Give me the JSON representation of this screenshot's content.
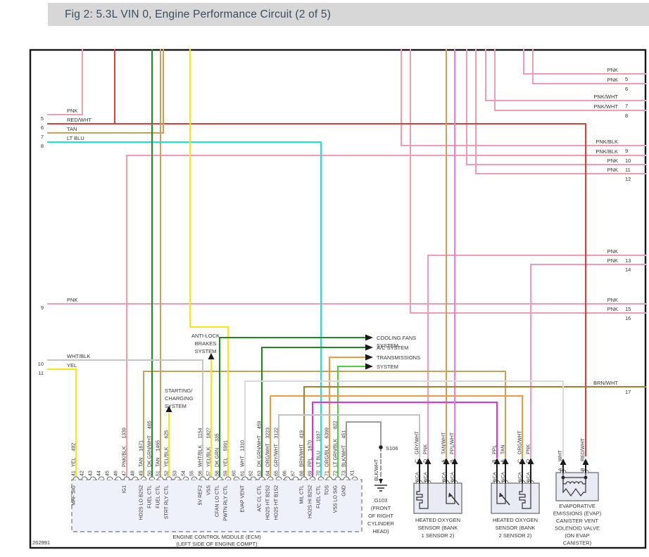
{
  "header": {
    "title": "Fig 2: 5.3L VIN 0, Engine Performance Circuit (2 of 5)"
  },
  "figure_id": "262991",
  "palette": {
    "pnk": "#f29cb4",
    "red": "#e23b3b",
    "tan": "#c9a257",
    "ltblu": "#17e2e6",
    "yel": "#f6e90c",
    "dkgrn": "#1d8a1d",
    "ltgrn": "#4ed13e",
    "org": "#f09a40",
    "brn": "#a97e2c",
    "ppl": "#e62ee6",
    "pplwht": "#ef7be0",
    "wht": "#d9d9d9",
    "whtblk": "#c6c6c6",
    "gry": "#c3c3c3",
    "blkwht": "#9b9b9b"
  },
  "left_exits": [
    {
      "num": "5",
      "label": "PNK"
    },
    {
      "num": "6",
      "label": "RED/WHT"
    },
    {
      "num": "7",
      "label": "TAN"
    },
    {
      "num": "8",
      "label": "LT BLU"
    },
    {
      "num": "9",
      "label": "PNK"
    },
    {
      "num": "10",
      "label": "WHT/BLK"
    },
    {
      "num": "11",
      "label": "YEL"
    }
  ],
  "right_exits": [
    {
      "num": "5",
      "label": "PNK"
    },
    {
      "num": "6",
      "label": "PNK"
    },
    {
      "num": "7",
      "label": "PNK/WHT"
    },
    {
      "num": "8",
      "label": "PNK/WHT"
    },
    {
      "num": "9",
      "label": "PNK/BLK"
    },
    {
      "num": "10",
      "label": "PNK/BLK"
    },
    {
      "num": "11",
      "label": "PNK"
    },
    {
      "num": "12",
      "label": "PNK"
    },
    {
      "num": "13",
      "label": "PNK"
    },
    {
      "num": "14",
      "label": "PNK"
    },
    {
      "num": "15",
      "label": "PNK"
    },
    {
      "num": "16",
      "label": "PNK"
    },
    {
      "num": "17",
      "label": "BRN/WHT"
    }
  ],
  "systems": {
    "cooling": [
      "COOLING FANS",
      "SYSTEM"
    ],
    "ac": [
      "A/C SYSTEM"
    ],
    "trans": [
      "TRANSMISSIONS",
      "SYSTEM"
    ],
    "abs": [
      "ANTI-LOCK",
      "BRAKES",
      "SYSTEM"
    ],
    "start_chg": [
      "STARTING/",
      "CHARGING",
      "SYSTEM"
    ]
  },
  "ecm": {
    "label": [
      "ENGINE CONTROL MODULE (ECM)",
      "(LEFT SIDE OF ENGINE COMPT)"
    ],
    "pins": [
      {
        "n": "41",
        "color": "YEL",
        "circuit": "492",
        "fn": "MAF SIG"
      },
      {
        "n": "42"
      },
      {
        "n": "43"
      },
      {
        "n": "44"
      },
      {
        "n": "45"
      },
      {
        "n": "46"
      },
      {
        "n": "47",
        "color": "PNK/BLK",
        "circuit": "1339",
        "fn": "IG1"
      },
      {
        "n": "48"
      },
      {
        "n": "49",
        "color": "TAN",
        "circuit": "1671",
        "fn": "HO2S LO B2S2"
      },
      {
        "n": "50",
        "color": "DK GRN/WHT",
        "circuit": "465",
        "fn": "FUEL CTL"
      },
      {
        "n": "51",
        "color": "TAN",
        "circuit": "1465",
        "fn": "FUEL CTL"
      },
      {
        "n": "52",
        "color": "YEL/BLK",
        "circuit": "625",
        "fn": "STRT RLY CTL"
      },
      {
        "n": "53"
      },
      {
        "n": "54"
      },
      {
        "n": "55"
      },
      {
        "n": "56",
        "color": "WHT/BLK",
        "circuit": "1154",
        "fn": "5V REF2"
      },
      {
        "n": "57",
        "color": "YEL/BLK",
        "circuit": "1827",
        "fn": "VSS"
      },
      {
        "n": "58",
        "color": "DK GRN",
        "circuit": "335",
        "fn": "CFAN LO CTL"
      },
      {
        "n": "59",
        "color": "YEL",
        "circuit": "5991",
        "fn": "PWTN RLY CTL"
      },
      {
        "n": "60"
      },
      {
        "n": "61",
        "color": "WHT",
        "circuit": "1310",
        "fn": "EVAP VENT"
      },
      {
        "n": "62"
      },
      {
        "n": "63",
        "color": "DK GRN/WHT",
        "circuit": "459",
        "fn": "A/C CL CTL"
      },
      {
        "n": "64",
        "color": "ORG/WHT",
        "circuit": "3223",
        "fn": "HO2S HT B2S2"
      },
      {
        "n": "65",
        "color": "GRY/WHT",
        "circuit": "3122",
        "fn": "HO2S HT B1S2"
      },
      {
        "n": "66"
      },
      {
        "n": "67"
      },
      {
        "n": "68",
        "color": "BRN/WHT",
        "circuit": "419",
        "fn": "MIL CTL"
      },
      {
        "n": "69",
        "color": "PPL",
        "circuit": "1670",
        "fn": "HO2S HI B2S2"
      },
      {
        "n": "70",
        "color": "LT BLU",
        "circuit": "1937",
        "fn": "FUEL CTL"
      },
      {
        "n": "71",
        "color": "ORG/BLK",
        "circuit": "6399",
        "fn": "TOS"
      },
      {
        "n": "72",
        "color": "LT GRN/BLK",
        "circuit": "822",
        "fn": "VSS LO SIG"
      },
      {
        "n": "73",
        "color": "BLK/WHT",
        "circuit": "451",
        "fn": "GND"
      },
      {
        "n": "X1"
      }
    ]
  },
  "sensors": [
    {
      "label": [
        "HEATED OXYGEN",
        "SENSOR (BANK",
        "1 SENSOR 2)"
      ],
      "pins": [
        {
          "letter": "C",
          "color": "GRY/WHT",
          "nca": "NCA"
        },
        {
          "letter": "D",
          "color": "PNK",
          "nca": "NCA"
        },
        {
          "letter": "A",
          "color": "TAN/WHT",
          "nca": "NCA"
        },
        {
          "letter": "B",
          "color": "PPL/WHT",
          "nca": "NCA"
        }
      ]
    },
    {
      "label": [
        "HEATED OXYGEN",
        "SENSOR (BANK",
        "2 SENSOR 2)"
      ],
      "pins": [
        {
          "letter": "B",
          "color": "PPL",
          "nca": "NCA"
        },
        {
          "letter": "A",
          "color": "TAN",
          "nca": "NCA"
        },
        {
          "letter": "C",
          "color": "ORG/WHT",
          "nca": "NCA"
        },
        {
          "letter": "D",
          "color": "PNK",
          "nca": "NCA"
        }
      ]
    }
  ],
  "evap": {
    "label": [
      "EVAPORATIVE",
      "EMISSIONS (EVAP)",
      "CANISTER VENT",
      "SOLENOID VALVE",
      "(ON EVAP",
      "CANISTER)"
    ],
    "pins": [
      {
        "letter": "A",
        "color": "WHT"
      },
      {
        "letter": "B",
        "color": "RED/WHT"
      }
    ]
  },
  "ground": {
    "splice": "S106",
    "wire": "BLK/WHT",
    "label": [
      "G103",
      "(FRONT",
      "OF RIGHT",
      "CYLINDER",
      "HEAD)"
    ]
  }
}
